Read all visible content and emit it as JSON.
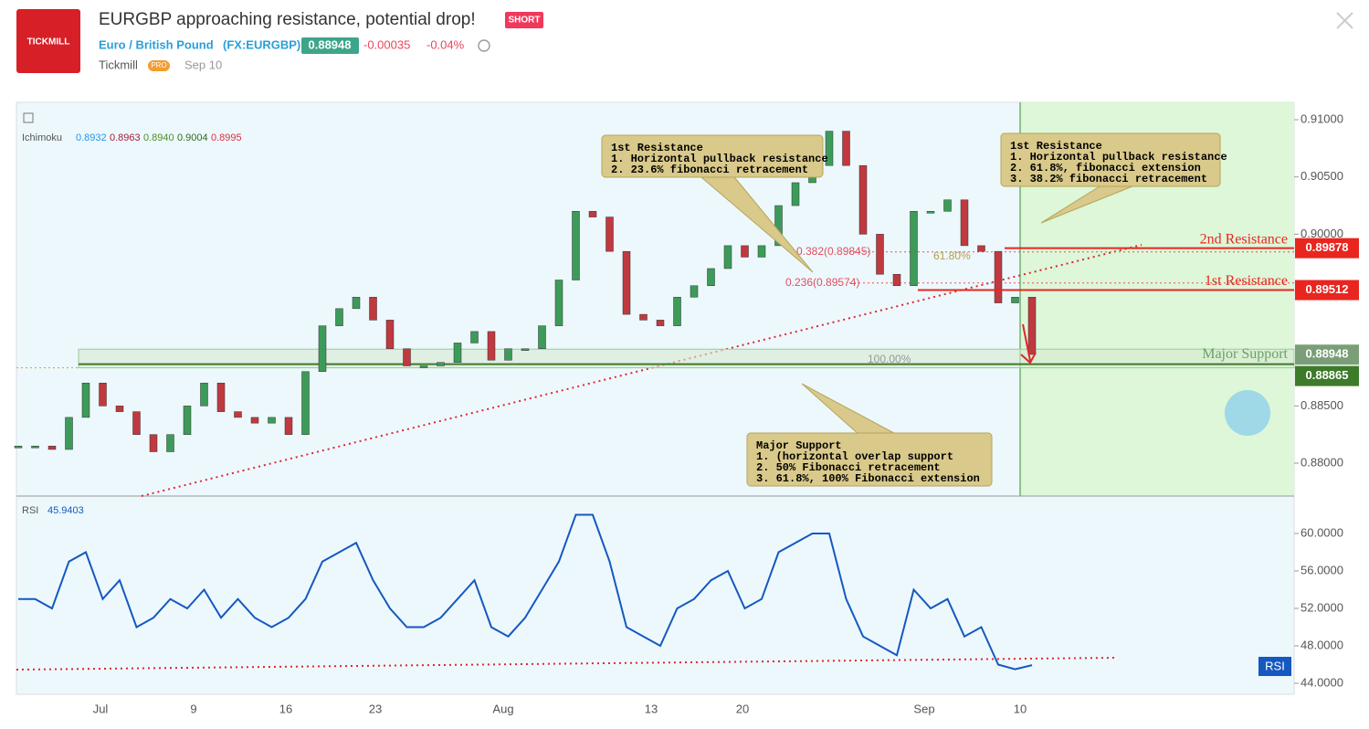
{
  "header": {
    "logo": "TICKMILL",
    "title": "EURGBP approaching resistance, potential drop!",
    "badge": "SHORT",
    "symbol_name": "Euro / British Pound",
    "symbol_code": "(FX:EURGBP)",
    "price": "0.88948",
    "change": "-0.00035",
    "change_pct": "-0.04%",
    "author": "Tickmill",
    "author_badge": "PRO",
    "date": "Sep 10"
  },
  "chart_data": {
    "type": "candlestick",
    "indicator": {
      "name": "Ichimoku",
      "values": [
        "0.8932",
        "0.8963",
        "0.8940",
        "0.9004",
        "0.8995"
      ],
      "colors": [
        "#2196f3",
        "#a0203a",
        "#4a8f2a",
        "#2e6b1e",
        "#e0303a"
      ]
    },
    "values": [
      0.8815,
      0.8815,
      0.8812,
      0.884,
      0.887,
      0.885,
      0.8845,
      0.8825,
      0.881,
      0.8825,
      0.885,
      0.887,
      0.8845,
      0.884,
      0.8835,
      0.884,
      0.8825,
      0.888,
      0.892,
      0.8935,
      0.8945,
      0.8925,
      0.89,
      0.8885,
      0.8885,
      0.8888,
      0.8905,
      0.8915,
      0.889,
      0.89,
      0.89,
      0.892,
      0.896,
      0.902,
      0.9015,
      0.8985,
      0.893,
      0.8925,
      0.892,
      0.8945,
      0.8955,
      0.897,
      0.899,
      0.898,
      0.899,
      0.9025,
      0.9045,
      0.906,
      0.909,
      0.906,
      0.9,
      0.8965,
      0.8955,
      0.902,
      0.902,
      0.903,
      0.899,
      0.8985,
      0.894,
      0.8945,
      0.8895
    ],
    "ylim": [
      0.87713,
      0.91152
    ],
    "yticks": [
      {
        "value": 0.91,
        "label": "0.91000"
      },
      {
        "value": 0.905,
        "label": "0.90500"
      },
      {
        "value": 0.9,
        "label": "0.90000"
      },
      {
        "value": 0.885,
        "label": "0.88500"
      },
      {
        "value": 0.88,
        "label": "0.88000"
      }
    ],
    "levels": [
      {
        "name": "2nd Resistance",
        "value": 0.89878,
        "color": "#e8261f"
      },
      {
        "name": "1st Resistance",
        "value": 0.89512,
        "color": "#e8261f"
      },
      {
        "name": "Major Support",
        "value": 0.88948,
        "color": "#6f9f6a"
      }
    ],
    "support_value": 0.88865,
    "fib": [
      {
        "label": "0.382(0.89845)",
        "value": 0.89845
      },
      {
        "label": "0.236(0.89574)",
        "value": 0.89574
      }
    ],
    "fib_ext": [
      "61.80%",
      "100.00%"
    ],
    "annotations": [
      {
        "title": "1st Resistance",
        "lines": [
          "1. Horizontal pullback resistance",
          "2. 23.6% fibonacci retracement"
        ]
      },
      {
        "title": "1st Resistance",
        "lines": [
          "1. Horizontal pullback resistance",
          "2. 61.8%,  fibonacci extension",
          "3. 38.2% fibonacci retracement"
        ]
      },
      {
        "title": "Major Support",
        "lines": [
          "1. (horizontal overlap support",
          "2. 50% Fibonacci retracement",
          "3. 61.8%, 100% Fibonacci extension"
        ]
      }
    ],
    "x_labels": [
      "Jul",
      "9",
      "16",
      "23",
      "Aug",
      "13",
      "20",
      "Sep",
      "10"
    ],
    "rsi": {
      "name": "RSI",
      "value_label": "45.9403",
      "color": "#1558c0",
      "values": [
        53,
        53,
        52,
        57,
        58,
        53,
        55,
        50,
        51,
        53,
        52,
        54,
        51,
        53,
        51,
        50,
        51,
        53,
        57,
        58,
        59,
        55,
        52,
        50,
        50,
        51,
        53,
        55,
        50,
        49,
        51,
        54,
        57,
        62,
        62,
        57,
        50,
        49,
        48,
        52,
        53,
        55,
        56,
        52,
        53,
        58,
        59,
        60,
        60,
        53,
        49,
        48,
        47,
        54,
        52,
        53,
        49,
        50,
        46,
        45.5,
        45.9403
      ],
      "ylim": [
        42.83,
        63.8
      ],
      "yticks": [
        {
          "value": 60,
          "label": "60.0000"
        },
        {
          "value": 56,
          "label": "56.0000"
        },
        {
          "value": 52,
          "label": "52.0000"
        },
        {
          "value": 48,
          "label": "48.0000"
        },
        {
          "value": 44,
          "label": "44.0000"
        }
      ]
    }
  }
}
